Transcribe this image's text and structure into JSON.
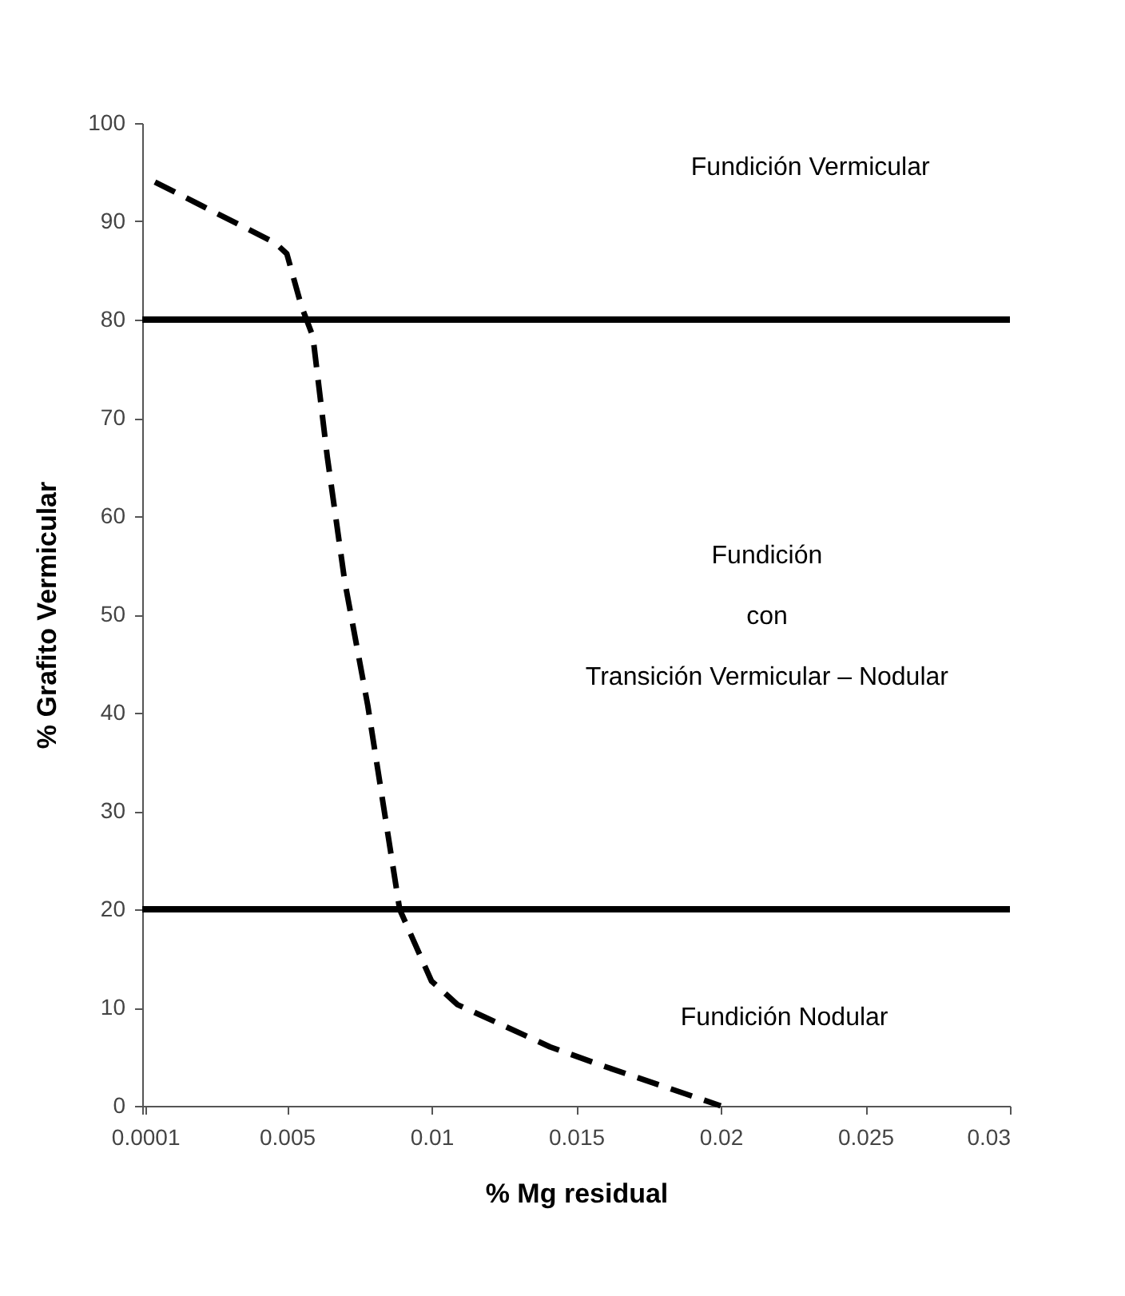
{
  "chart_data": {
    "type": "line",
    "xlabel": "% Mg residual",
    "ylabel": "% Grafito Vermicular",
    "x": [
      0.00044,
      0.0046,
      0.005,
      0.0055,
      0.0059,
      0.0064,
      0.007,
      0.0078,
      0.0089,
      0.01,
      0.0109,
      0.0141,
      0.0159,
      0.02
    ],
    "series": [
      {
        "color": "#000000",
        "values": [
          94,
          87.8,
          86.7,
          81.4,
          78.3,
          66,
          53.4,
          40.7,
          20,
          12.7,
          10.3,
          6,
          4.1,
          0
        ]
      }
    ],
    "xlim": [
      0,
      0.03
    ],
    "xticks": [
      {
        "value": 0,
        "label": null
      },
      0.0001,
      0.005,
      0.01,
      0.015,
      0.02,
      0.025,
      0.03
    ],
    "ylim": [
      0,
      100
    ],
    "yticks": [
      0,
      10,
      20,
      30,
      40,
      50,
      60,
      70,
      80,
      90,
      100
    ],
    "ref_lines": [
      {
        "axis": "y",
        "value": 80,
        "color": "#000000",
        "line_style": "solid"
      },
      {
        "axis": "y",
        "value": 20,
        "color": "#000000",
        "line_style": "solid"
      }
    ],
    "annotations": [
      "Fundición Vermicular",
      "Fundición\ncon\nTransición Vermicular – Nodular",
      "Fundición Nodular"
    ],
    "grid": false,
    "marker": "none",
    "line_style": "dashed"
  }
}
